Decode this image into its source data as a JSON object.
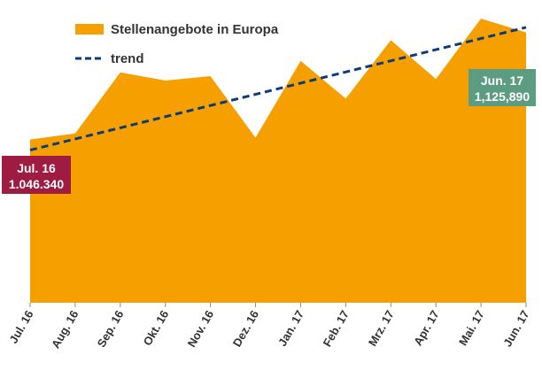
{
  "chart_data": {
    "type": "area",
    "categories": [
      "Jul. 16",
      "Aug. 16",
      "Sep. 16",
      "Okt. 16",
      "Nov. 16",
      "Dez. 16",
      "Jan. 17",
      "Feb. 17",
      "Mrz. 17",
      "Apr. 17",
      "Mai. 17",
      "Jun. 17"
    ],
    "series": [
      {
        "name": "Stellenangebote in Europa",
        "type": "area",
        "color": "#F5A000",
        "values": [
          1046340,
          1050800,
          1096200,
          1090100,
          1093400,
          1047700,
          1104800,
          1076700,
          1120100,
          1091300,
          1136200,
          1125890
        ]
      },
      {
        "name": "trend",
        "type": "line",
        "style": "dashed",
        "color": "#0D3B7A",
        "values": [
          1038400,
          1046700,
          1055000,
          1063300,
          1071600,
          1079900,
          1088200,
          1096500,
          1104800,
          1113100,
          1121400,
          1129700
        ]
      }
    ],
    "ylim": [
      925000,
      1150000
    ],
    "title": "",
    "xlabel": "",
    "ylabel": "",
    "grid": false,
    "legend": "top-left",
    "callouts": [
      {
        "label": "Jul. 16",
        "value": "1.046.340",
        "color": "#9E1B42"
      },
      {
        "label": "Jun. 17",
        "value": "1,125,890",
        "color": "#5C9C82"
      }
    ]
  }
}
